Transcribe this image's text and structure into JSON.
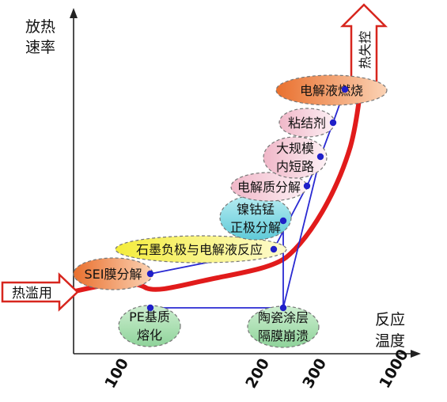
{
  "axes": {
    "y_label_line1": "放热",
    "y_label_line2": "速率",
    "x_label_line1": "反应",
    "x_label_line2": "温度",
    "x_ticks": [
      "100",
      "200",
      "300",
      "1000"
    ]
  },
  "arrows": {
    "thermal_abuse": "热滥用",
    "thermal_runaway": "热失控"
  },
  "events": {
    "sei": "SEI膜分解",
    "pe": [
      "PE基质",
      "熔化"
    ],
    "anode": "石墨负极与电解液反应",
    "cathode": [
      "镍钴锰",
      "正极分解"
    ],
    "ceramic": [
      "陶瓷涂层",
      "隔膜崩溃"
    ],
    "electrolyte_decomp": "电解质分解",
    "short_circuit": [
      "大规模",
      "内短路"
    ],
    "binder": "粘结剂",
    "electrolyte_burn": "电解液燃烧"
  },
  "colors": {
    "curve": "#e11b1b",
    "connector": "#2a2ad2",
    "node": "#1f1fc8",
    "arrow_outline": "#d7261e"
  }
}
